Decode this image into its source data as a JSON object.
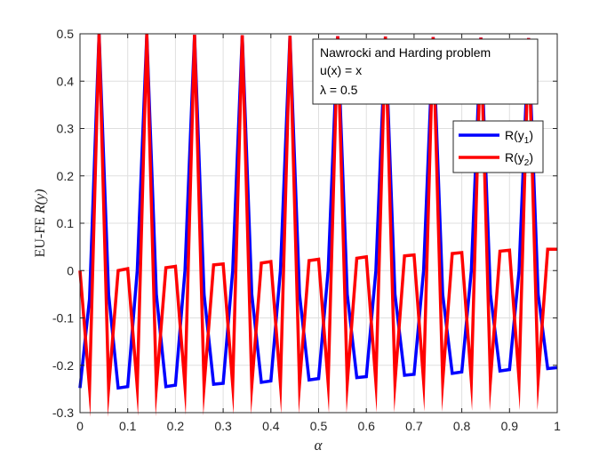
{
  "chart_data": {
    "type": "line",
    "xlabel": "α",
    "ylabel_prefix": "EU-FE",
    "ylabel_var": "R(y)",
    "xlim": [
      0,
      1
    ],
    "ylim": [
      -0.3,
      0.5
    ],
    "xticks": [
      0,
      0.1,
      0.2,
      0.3,
      0.4,
      0.5,
      0.6,
      0.7,
      0.8,
      0.9,
      1
    ],
    "xtick_labels": [
      "0",
      "0.1",
      "0.2",
      "0.3",
      "0.4",
      "0.5",
      "0.6",
      "0.7",
      "0.8",
      "0.9",
      "1"
    ],
    "yticks": [
      -0.3,
      -0.2,
      -0.1,
      0,
      0.1,
      0.2,
      0.3,
      0.4,
      0.5
    ],
    "ytick_labels": [
      "-0.3",
      "-0.2",
      "-0.1",
      "0",
      "0.1",
      "0.2",
      "0.3",
      "0.4",
      "0.5"
    ],
    "grid": true,
    "annotation": [
      "Nawrocki and Harding problem",
      "u(x) = x",
      "λ = 0.5"
    ],
    "legend_placement": "right",
    "series": [
      {
        "name": "R(y₁)",
        "legend_base": "R(y",
        "legend_sub": "1",
        "legend_tail": ")",
        "color": "#0000ff",
        "x": [
          0.0,
          0.02,
          0.04,
          0.06,
          0.08,
          0.1,
          0.12,
          0.14,
          0.16,
          0.18,
          0.2,
          0.22,
          0.24,
          0.26,
          0.28,
          0.3,
          0.32,
          0.34,
          0.36,
          0.38,
          0.4,
          0.42,
          0.44,
          0.46,
          0.48,
          0.5,
          0.52,
          0.54,
          0.56,
          0.58,
          0.6,
          0.62,
          0.64,
          0.66,
          0.68,
          0.7,
          0.72,
          0.74,
          0.76,
          0.78,
          0.8,
          0.82,
          0.84,
          0.86,
          0.88,
          0.9,
          0.92,
          0.94,
          0.96,
          0.98,
          1.0
        ],
        "y": [
          -0.248,
          -0.06,
          0.5,
          -0.05,
          -0.248,
          -0.245,
          0.0,
          0.499,
          -0.05,
          -0.245,
          -0.242,
          0.0,
          0.498,
          -0.05,
          -0.24,
          -0.238,
          0.0,
          0.497,
          -0.05,
          -0.236,
          -0.233,
          0.0,
          0.496,
          -0.05,
          -0.231,
          -0.228,
          0.0,
          0.495,
          -0.05,
          -0.226,
          -0.224,
          0.0,
          0.494,
          -0.05,
          -0.221,
          -0.219,
          0.0,
          0.493,
          -0.05,
          -0.217,
          -0.214,
          0.0,
          0.492,
          -0.05,
          -0.212,
          -0.209,
          0.0,
          0.491,
          -0.05,
          -0.207,
          -0.205
        ]
      },
      {
        "name": "R(y₂)",
        "legend_base": "R(y",
        "legend_sub": "2",
        "legend_tail": ")",
        "color": "#ff0000",
        "x": [
          0.0,
          0.02,
          0.04,
          0.06,
          0.08,
          0.1,
          0.12,
          0.14,
          0.16,
          0.18,
          0.2,
          0.22,
          0.24,
          0.26,
          0.28,
          0.3,
          0.32,
          0.34,
          0.36,
          0.38,
          0.4,
          0.42,
          0.44,
          0.46,
          0.48,
          0.5,
          0.52,
          0.54,
          0.56,
          0.58,
          0.6,
          0.62,
          0.64,
          0.66,
          0.68,
          0.7,
          0.72,
          0.74,
          0.76,
          0.78,
          0.8,
          0.82,
          0.84,
          0.86,
          0.88,
          0.9,
          0.92,
          0.94,
          0.96,
          0.98,
          1.0
        ],
        "y": [
          0.0,
          -0.248,
          0.5,
          -0.248,
          0.0,
          0.004,
          -0.246,
          0.499,
          -0.246,
          0.006,
          0.009,
          -0.244,
          0.498,
          -0.244,
          0.012,
          0.014,
          -0.242,
          0.497,
          -0.242,
          0.016,
          0.019,
          -0.24,
          0.496,
          -0.24,
          0.021,
          0.024,
          -0.238,
          0.495,
          -0.238,
          0.026,
          0.029,
          -0.236,
          0.494,
          -0.236,
          0.031,
          0.033,
          -0.234,
          0.493,
          -0.234,
          0.036,
          0.038,
          -0.232,
          0.492,
          -0.232,
          0.041,
          0.043,
          -0.23,
          0.491,
          -0.23,
          0.045,
          0.045
        ]
      }
    ]
  }
}
